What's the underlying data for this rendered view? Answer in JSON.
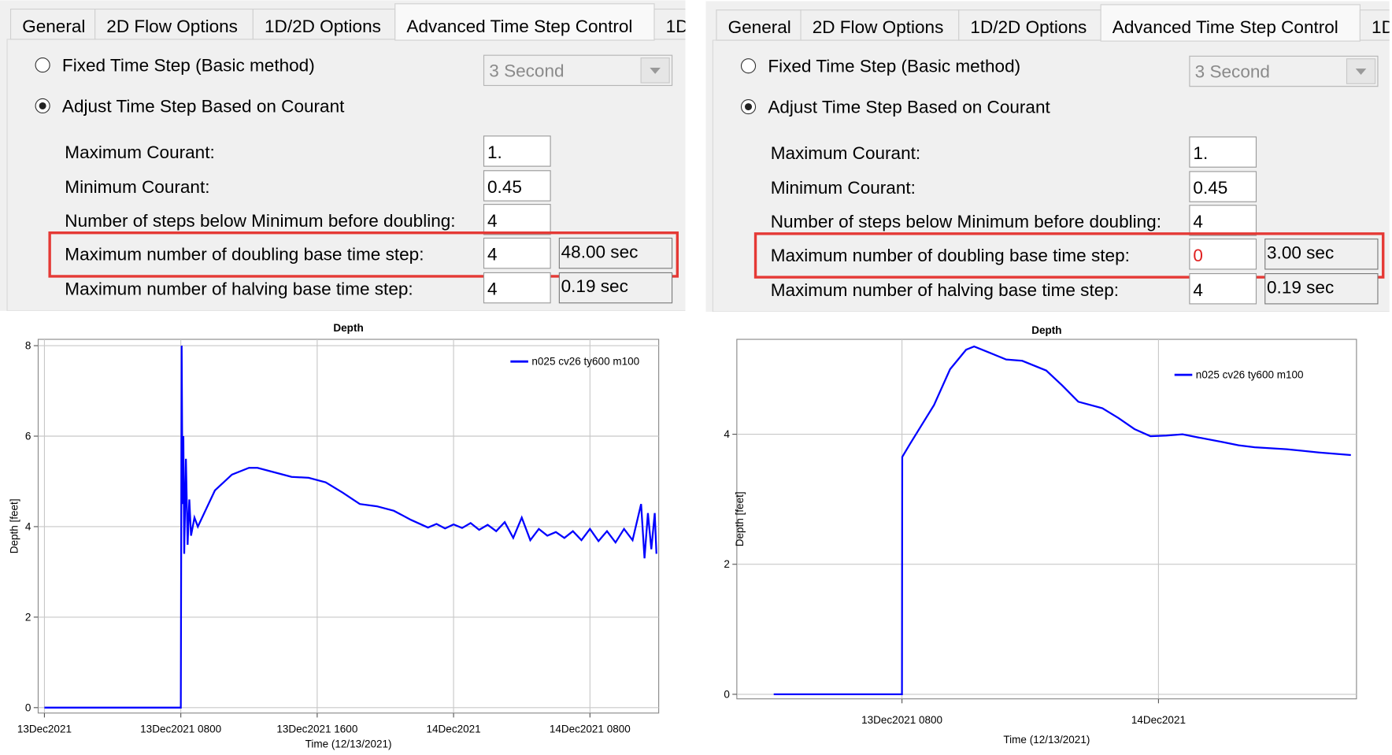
{
  "panels": [
    {
      "tabs": [
        "General",
        "2D Flow Options",
        "1D/2D Options",
        "Advanced Time Step Control",
        "1D"
      ],
      "selected_tab": 3,
      "options": [
        {
          "label": "Fixed Time Step (Basic method)",
          "selected": false
        },
        {
          "label": "Adjust Time Step Based on Courant",
          "selected": true
        }
      ],
      "dropdown": "3 Second",
      "fields": [
        {
          "label": "Maximum Courant:",
          "value": "1."
        },
        {
          "label": "Minimum Courant:",
          "value": "0.45"
        },
        {
          "label": "Number of steps below Minimum before doubling:",
          "value": "4"
        },
        {
          "label": "Maximum number of doubling base time step:",
          "value": "4",
          "result": "48.00 sec",
          "highlighted": true
        },
        {
          "label": "Maximum number of halving base time step:",
          "value": "4",
          "result": "0.19 sec"
        }
      ]
    },
    {
      "tabs": [
        "General",
        "2D Flow Options",
        "1D/2D Options",
        "Advanced Time Step Control",
        "1D"
      ],
      "selected_tab": 3,
      "options": [
        {
          "label": "Fixed Time Step (Basic method)",
          "selected": false
        },
        {
          "label": "Adjust Time Step Based on Courant",
          "selected": true
        }
      ],
      "dropdown": "3 Second",
      "fields": [
        {
          "label": "Maximum Courant:",
          "value": "1."
        },
        {
          "label": "Minimum Courant:",
          "value": "0.45"
        },
        {
          "label": "Number of steps below Minimum before doubling:",
          "value": "4"
        },
        {
          "label": "Maximum number of doubling base time step:",
          "value": "0",
          "value_color": "#e02020",
          "result": "3.00 sec",
          "highlighted": true
        },
        {
          "label": "Maximum number of halving base time step:",
          "value": "4",
          "result": "0.19 sec"
        }
      ]
    }
  ],
  "chart_data": [
    {
      "type": "line",
      "title": "Depth",
      "x_label": "Time (12/13/2021)",
      "y_label": "Depth [feet]",
      "xlim": [
        "2021-12-12T23:38",
        "2021-12-14T12:02"
      ],
      "xticks": [
        {
          "value": "2021-12-13T00:00",
          "label": "13Dec2021"
        },
        {
          "value": "2021-12-13T08:00",
          "label": "13Dec2021 0800"
        },
        {
          "value": "2021-12-13T16:00",
          "label": "13Dec2021 1600"
        },
        {
          "value": "2021-12-14T00:00",
          "label": "14Dec2021"
        },
        {
          "value": "2021-12-14T08:00",
          "label": "14Dec2021 0800"
        }
      ],
      "ylim": [
        -0.12,
        8.14
      ],
      "yticks": [
        0,
        2,
        4,
        6,
        8
      ],
      "grid": true,
      "legend": "upper right",
      "x": [
        "2021-12-13T00:00",
        "2021-12-13T08:00",
        "2021-12-13T08:03",
        "2021-12-13T08:06",
        "2021-12-13T08:09",
        "2021-12-13T08:12",
        "2021-12-13T08:18",
        "2021-12-13T08:24",
        "2021-12-13T08:30",
        "2021-12-13T08:36",
        "2021-12-13T08:48",
        "2021-12-13T09:00",
        "2021-12-13T09:30",
        "2021-12-13T10:00",
        "2021-12-13T11:00",
        "2021-12-13T12:00",
        "2021-12-13T12:30",
        "2021-12-13T13:30",
        "2021-12-13T14:30",
        "2021-12-13T15:30",
        "2021-12-13T16:30",
        "2021-12-13T17:30",
        "2021-12-13T18:30",
        "2021-12-13T19:30",
        "2021-12-13T20:30",
        "2021-12-13T21:30",
        "2021-12-13T22:30",
        "2021-12-13T23:00",
        "2021-12-13T23:30",
        "2021-12-14T00:00",
        "2021-12-14T00:30",
        "2021-12-14T01:00",
        "2021-12-14T01:30",
        "2021-12-14T02:00",
        "2021-12-14T02:30",
        "2021-12-14T03:00",
        "2021-12-14T03:30",
        "2021-12-14T04:00",
        "2021-12-14T04:30",
        "2021-12-14T05:00",
        "2021-12-14T05:30",
        "2021-12-14T06:00",
        "2021-12-14T06:30",
        "2021-12-14T07:00",
        "2021-12-14T07:30",
        "2021-12-14T08:00",
        "2021-12-14T08:30",
        "2021-12-14T09:00",
        "2021-12-14T09:30",
        "2021-12-14T10:00",
        "2021-12-14T10:30",
        "2021-12-14T11:00",
        "2021-12-14T11:12",
        "2021-12-14T11:24",
        "2021-12-14T11:36",
        "2021-12-14T11:48",
        "2021-12-14T11:54"
      ],
      "series": [
        {
          "name": "n025 cv26 ty600 m100",
          "color": "#0000ff",
          "values": [
            0,
            0,
            8.0,
            4.5,
            6.0,
            3.4,
            5.5,
            3.6,
            4.6,
            3.8,
            4.2,
            4.0,
            4.4,
            4.8,
            5.15,
            5.3,
            5.3,
            5.2,
            5.1,
            5.08,
            4.98,
            4.75,
            4.5,
            4.45,
            4.35,
            4.15,
            3.98,
            4.06,
            3.96,
            4.05,
            3.97,
            4.08,
            3.93,
            4.04,
            3.9,
            4.1,
            3.75,
            4.2,
            3.7,
            3.95,
            3.8,
            3.88,
            3.75,
            3.9,
            3.7,
            3.95,
            3.68,
            3.9,
            3.65,
            3.95,
            3.7,
            4.5,
            3.3,
            4.3,
            3.5,
            4.3,
            3.4
          ]
        }
      ]
    },
    {
      "type": "line",
      "title": "Depth",
      "x_label": "Time (12/13/2021)",
      "y_label": "Depth [feet]",
      "xlim": [
        "2021-12-12T21:42",
        "2021-12-14T12:21"
      ],
      "xticks": [
        {
          "value": "2021-12-13T08:00",
          "label": "13Dec2021 0800"
        },
        {
          "value": "2021-12-14T00:00",
          "label": "14Dec2021"
        }
      ],
      "ylim": [
        -0.07,
        5.46
      ],
      "yticks": [
        0,
        2,
        4
      ],
      "grid": true,
      "legend": "upper right",
      "x": [
        "2021-12-13T00:00",
        "2021-12-13T08:00",
        "2021-12-13T08:01",
        "2021-12-13T08:30",
        "2021-12-13T09:00",
        "2021-12-13T10:00",
        "2021-12-13T11:00",
        "2021-12-13T12:00",
        "2021-12-13T12:30",
        "2021-12-13T13:30",
        "2021-12-13T14:30",
        "2021-12-13T15:30",
        "2021-12-13T17:00",
        "2021-12-13T18:00",
        "2021-12-13T19:00",
        "2021-12-13T20:30",
        "2021-12-13T21:30",
        "2021-12-13T22:30",
        "2021-12-13T23:30",
        "2021-12-14T00:30",
        "2021-12-14T01:30",
        "2021-12-14T02:30",
        "2021-12-14T04:00",
        "2021-12-14T05:00",
        "2021-12-14T06:00",
        "2021-12-14T08:00",
        "2021-12-14T10:00",
        "2021-12-14T12:00"
      ],
      "series": [
        {
          "name": "n025 cv26 ty600 m100",
          "color": "#0000ff",
          "values": [
            0,
            0,
            3.65,
            3.85,
            4.05,
            4.45,
            5.0,
            5.3,
            5.35,
            5.25,
            5.15,
            5.13,
            4.98,
            4.75,
            4.5,
            4.4,
            4.25,
            4.08,
            3.97,
            3.98,
            4.0,
            3.95,
            3.88,
            3.83,
            3.8,
            3.77,
            3.72,
            3.68
          ]
        }
      ]
    }
  ]
}
